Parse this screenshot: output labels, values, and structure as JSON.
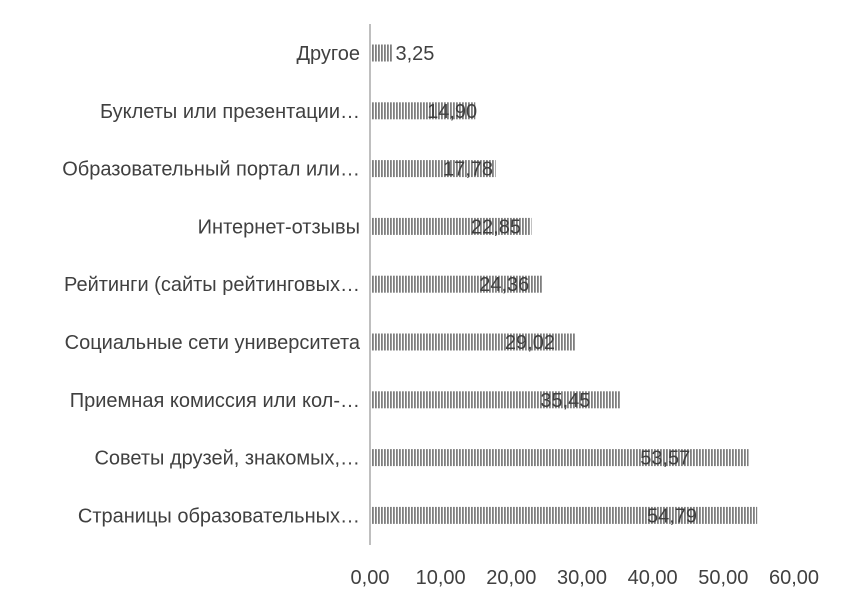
{
  "chart_data": {
    "type": "bar",
    "orientation": "horizontal",
    "categories": [
      "Другое",
      "Буклеты или презентации…",
      "Образовательный портал или…",
      "Интернет-отзывы",
      "Рейтинги (сайты рейтинговых…",
      "Социальные сети университета",
      "Приемная комиссия или кол-…",
      "Советы друзей, знакомых,…",
      "Страницы образовательных…"
    ],
    "values": [
      3.25,
      14.9,
      17.78,
      22.85,
      24.36,
      29.02,
      35.45,
      53.57,
      54.79
    ],
    "data_labels": [
      "3,25",
      "14,90",
      "17,78",
      "22,85",
      "24,36",
      "29,02",
      "35,45",
      "53,57",
      "54,79"
    ],
    "x_ticks": [
      "0,00",
      "10,00",
      "20,00",
      "30,00",
      "40,00",
      "50,00",
      "60,00"
    ],
    "xlim": [
      0,
      60
    ],
    "grid": false,
    "legend": "none",
    "title": "",
    "xlabel": "",
    "ylabel": "",
    "colors": {
      "bar_stripe": "#7f7f7f",
      "bar_fill": "#ffffff",
      "axis": "#bfbfbf",
      "text": "#404040"
    }
  }
}
